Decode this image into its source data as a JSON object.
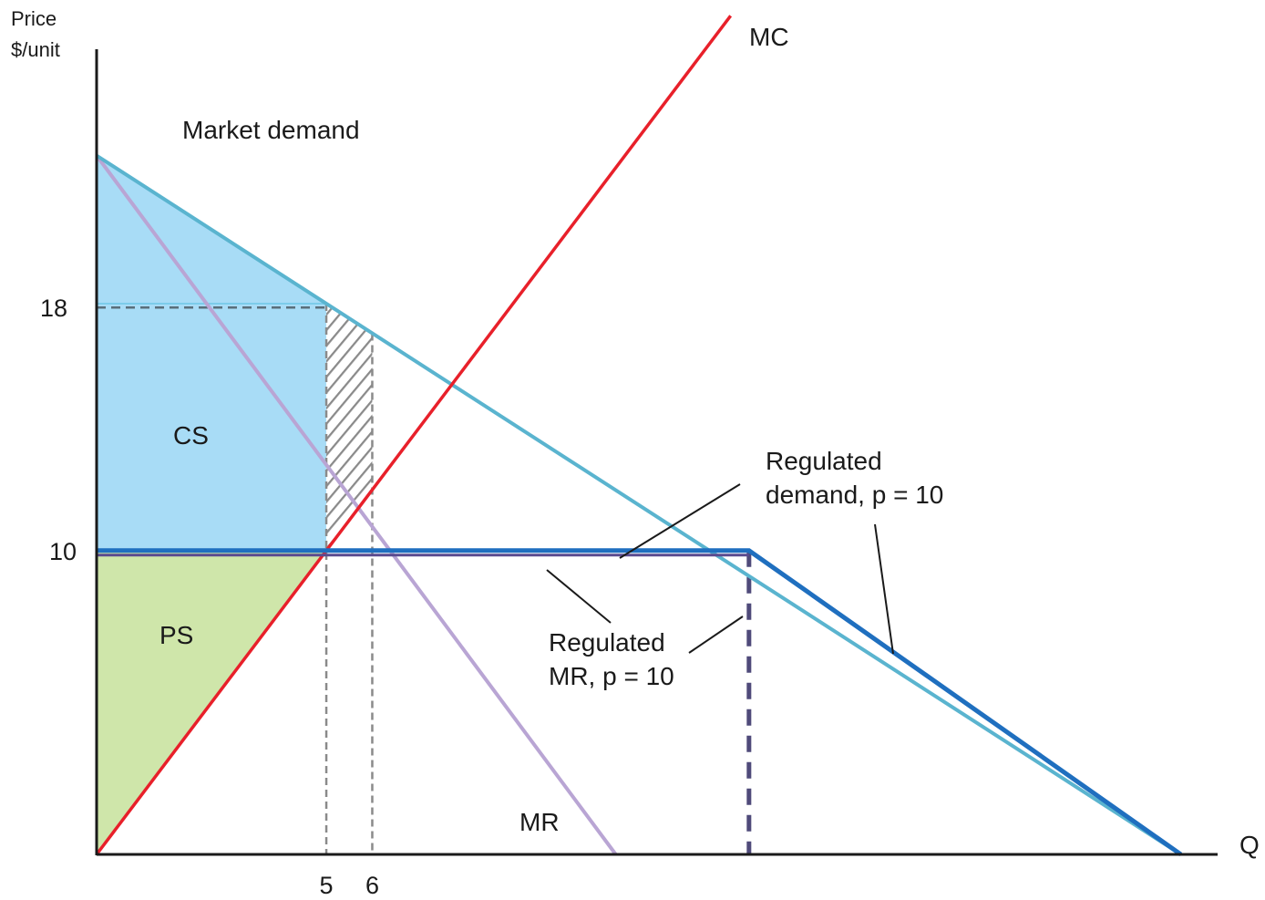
{
  "chart_data": {
    "type": "line",
    "title": "",
    "y_axis": {
      "title_line1": "Price",
      "title_line2": "$/unit"
    },
    "x_axis": {
      "title": "Q"
    },
    "y_ticks": [
      {
        "value": 18,
        "label": "18"
      },
      {
        "value": 10,
        "label": "10"
      }
    ],
    "x_ticks": [
      {
        "value": 5,
        "label": "5"
      },
      {
        "value": 6,
        "label": "6"
      }
    ],
    "xlim": [
      0,
      24.4
    ],
    "ylim": [
      0,
      26.5
    ],
    "series": [
      {
        "name": "Market demand",
        "color": "#5ab4cf",
        "x": [
          0,
          23.6
        ],
        "y": [
          23,
          0
        ]
      },
      {
        "name": "MC",
        "color": "#e8202a",
        "x": [
          0,
          13.8
        ],
        "y": [
          0,
          27.6
        ]
      },
      {
        "name": "MR",
        "color": "#b9a5d4",
        "x": [
          0,
          11.3
        ],
        "y": [
          23,
          0
        ]
      },
      {
        "name": "Regulated demand, p = 10",
        "color": "#1f6fbf",
        "x": [
          0,
          14.2,
          23.6
        ],
        "y": [
          10,
          10,
          0
        ]
      },
      {
        "name": "Regulated MR, p = 10",
        "color": "#5a4a8f",
        "x": [
          0,
          14.2
        ],
        "y": [
          9.85,
          9.85
        ]
      }
    ],
    "areas": [
      {
        "label": "CS",
        "color": "#a8dcf6"
      },
      {
        "label": "PS",
        "color": "#cfe6aa"
      }
    ],
    "annotations": {
      "market_demand": "Market demand",
      "mc": "MC",
      "mr": "MR",
      "regulated_demand_line1": "Regulated",
      "regulated_demand_line2": "demand, p = 10",
      "regulated_mr_line1": "Regulated",
      "regulated_mr_line2": "MR, p = 10"
    },
    "grid": false
  }
}
